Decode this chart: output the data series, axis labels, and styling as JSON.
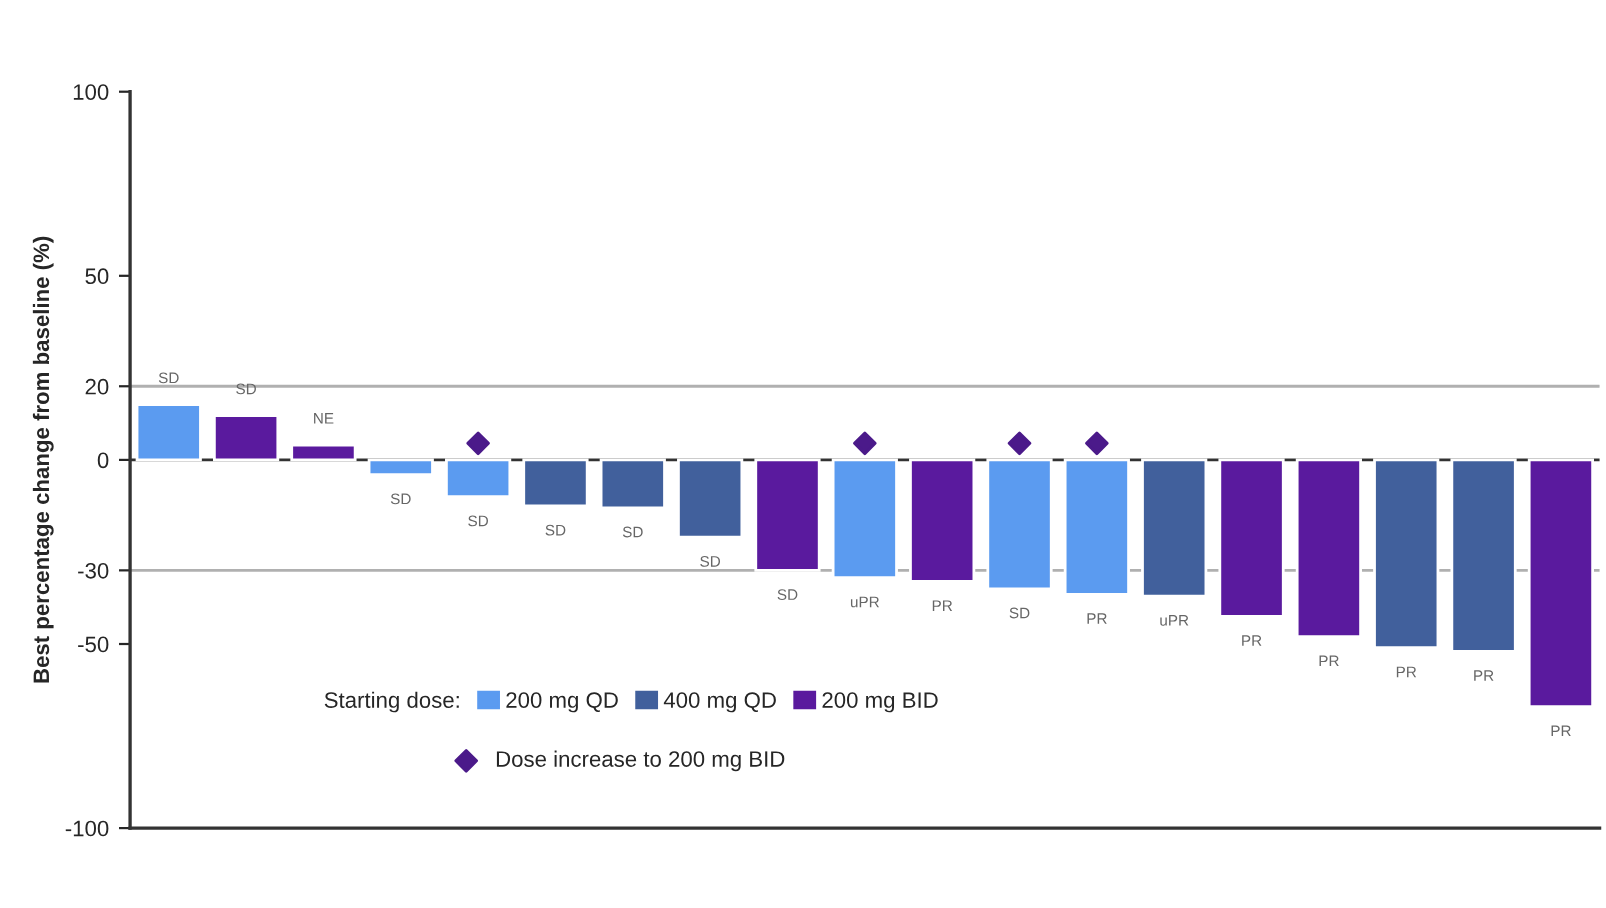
{
  "chart_data": {
    "type": "bar",
    "ylabel": "Best percentage change from baseline (%)",
    "legend_title": "Starting dose:",
    "categories": [
      null,
      null,
      null,
      null,
      null,
      null,
      null,
      null,
      null,
      null,
      null,
      null,
      null,
      null,
      null,
      null,
      null,
      null,
      null
    ],
    "series": [
      {
        "name": "200 mg QD",
        "color": "#5b9bf0",
        "values": [
          15,
          null,
          null,
          -4,
          -10,
          null,
          null,
          null,
          null,
          -32,
          null,
          -35,
          -36.5,
          null,
          null,
          null,
          null,
          null,
          null
        ],
        "value_labels": [
          "SD",
          null,
          null,
          "SD",
          "SD",
          null,
          null,
          null,
          null,
          "uPR",
          null,
          "SD",
          "PR",
          null,
          null,
          null,
          null,
          null,
          null
        ]
      },
      {
        "name": "400 mg QD",
        "color": "#41609c",
        "values": [
          null,
          null,
          null,
          null,
          null,
          -12.5,
          -13,
          -21,
          null,
          null,
          null,
          null,
          null,
          -37,
          null,
          null,
          -51,
          -52,
          null
        ],
        "value_labels": [
          null,
          null,
          null,
          null,
          null,
          "SD",
          "SD",
          "SD",
          null,
          null,
          null,
          null,
          null,
          "uPR",
          null,
          null,
          "PR",
          "PR",
          null
        ]
      },
      {
        "name": "200 mg BID",
        "color": "#5a1a9e",
        "values": [
          null,
          12,
          4,
          null,
          null,
          null,
          null,
          null,
          -30,
          null,
          -33,
          null,
          null,
          null,
          -42.5,
          -48,
          null,
          null,
          -67
        ],
        "value_labels": [
          null,
          "SD",
          "NE",
          null,
          null,
          null,
          null,
          null,
          "SD",
          null,
          "PR",
          null,
          null,
          null,
          "PR",
          "PR",
          null,
          null,
          "PR"
        ]
      },
      {
        "name": "Dose increase to 200 mg BID",
        "type": "scatter",
        "marker": "diamond",
        "color": "#4b1a8a",
        "values": [
          null,
          null,
          null,
          null,
          4.5,
          null,
          null,
          null,
          null,
          4.5,
          null,
          4.5,
          4.5,
          null,
          null,
          null,
          null,
          null,
          null
        ]
      }
    ],
    "ylim": [
      -100,
      100
    ],
    "yticks": [
      -100,
      -50,
      -30,
      0,
      20,
      50,
      100
    ],
    "ref_lines": [
      {
        "axis": "y",
        "value": 20,
        "color": "#b0b0b0"
      },
      {
        "axis": "y",
        "value": -30,
        "color": "#b0b0b0"
      },
      {
        "axis": "y",
        "value": 0,
        "color": "#333333"
      }
    ],
    "stacked": true,
    "grid": false,
    "legend": "bottom left",
    "tick_labels": "y"
  }
}
